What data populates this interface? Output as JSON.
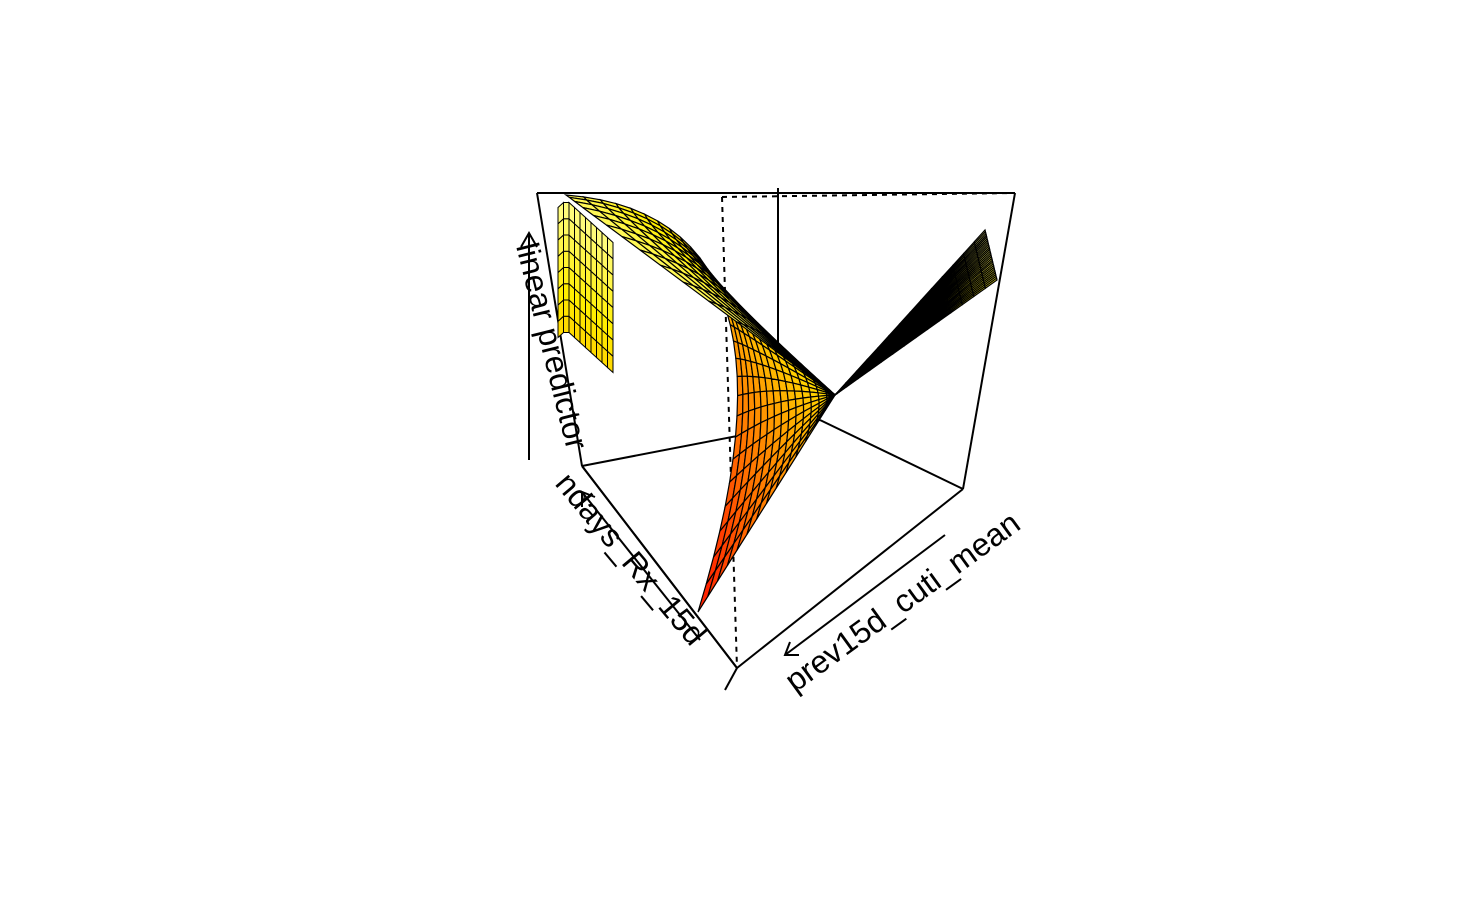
{
  "chart_data": {
    "type": "surface",
    "title": "",
    "zlabel": "linear predictor",
    "xlabel": "prev15d_cuti_mean",
    "ylabel": "ndays_Rx_15d",
    "colormap": [
      "#ff0000",
      "#ff6a00",
      "#ffb000",
      "#ffee00",
      "#ffff9a"
    ],
    "grid_lines": true,
    "axis_arrows": true,
    "surface_shape": "saddle",
    "x_range": [
      0,
      1
    ],
    "y_range": [
      0,
      1
    ],
    "z_range": [
      -1,
      1
    ]
  }
}
